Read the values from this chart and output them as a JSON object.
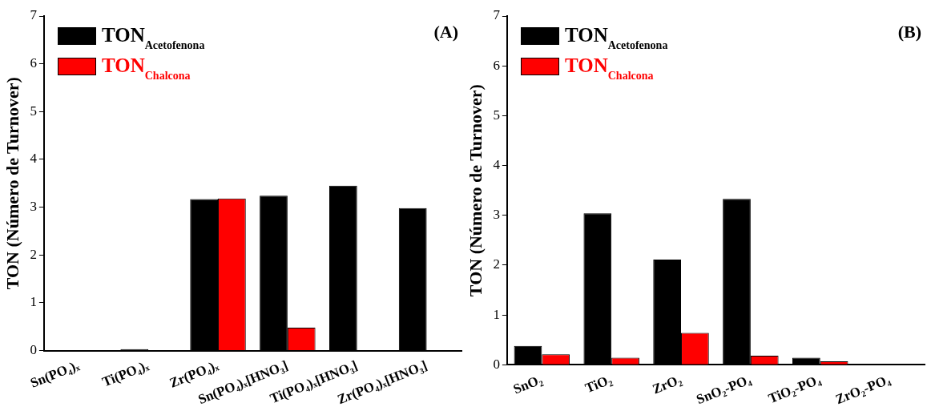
{
  "chart_data": [
    {
      "type": "bar",
      "ylabel": "TON (Número de Turnover)",
      "annotations": [
        "(A)"
      ],
      "legend": "top left",
      "grid": false,
      "categories": [
        "Sn(PO₄)ₓ",
        "Ti(PO₄)ₓ",
        "Zr(PO₄)ₓ",
        "Sn(PO₄)ₓ[HNO₃]",
        "Ti(PO₄)ₓ[HNO₃]",
        "Zr(PO₄)ₓ[HNO₃]"
      ],
      "ylim": [
        0,
        7
      ],
      "yticks": [
        0,
        1,
        2,
        3,
        4,
        5,
        6,
        7
      ],
      "series": [
        {
          "name": "TON$_{Acetofenona}$",
          "color": "#000000",
          "values": [
            null,
            0.03,
            3.17,
            3.24,
            3.45,
            2.98
          ]
        },
        {
          "name": "TON$_{Chalcona}$",
          "color": "#ff0000",
          "values": [
            0,
            0,
            3.18,
            0.48,
            0,
            0
          ]
        }
      ]
    },
    {
      "type": "bar",
      "ylabel": "TON (Número de Turnover)",
      "annotations": [
        "(B)"
      ],
      "legend": "top left",
      "grid": false,
      "categories": [
        "SnO₂",
        "TiO₂",
        "ZrO₂",
        "SnO₂-PO₄",
        "TiO₂-PO₄",
        "ZrO₂-PO₄"
      ],
      "ylim": [
        0,
        7
      ],
      "yticks": [
        0,
        1,
        2,
        3,
        4,
        5,
        6,
        7
      ],
      "series": [
        {
          "name": "TON$_{Acetofenona}$",
          "color": "#000000",
          "values": [
            0.38,
            3.04,
            2.11,
            3.33,
            0.14,
            null
          ]
        },
        {
          "name": "TON$_{Chalcona}$",
          "color": "#ff0000",
          "values": [
            0.21,
            0.14,
            0.64,
            0.18,
            0.07,
            0
          ]
        }
      ]
    }
  ]
}
